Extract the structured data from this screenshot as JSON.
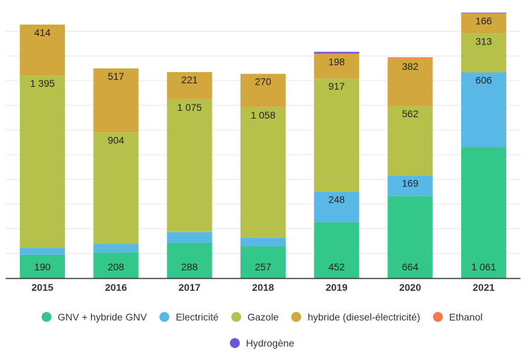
{
  "chart_data": {
    "type": "bar",
    "stacked": true,
    "title": "",
    "xlabel": "",
    "ylabel": "",
    "categories": [
      "2015",
      "2016",
      "2017",
      "2018",
      "2019",
      "2020",
      "2021"
    ],
    "ylim": [
      0,
      2150
    ],
    "y_ticks_shown": false,
    "grid": "horizontal",
    "legend_position": "bottom",
    "series": [
      {
        "name": "GNV + hybride GNV",
        "color": "#33c88a",
        "values": [
          190,
          208,
          288,
          257,
          452,
          664,
          1061
        ],
        "labels": [
          "190",
          "208",
          "288",
          "257",
          "452",
          "664",
          "1 061"
        ]
      },
      {
        "name": "Electricité",
        "color": "#5ab8e6",
        "values": [
          55,
          70,
          85,
          70,
          248,
          169,
          606
        ],
        "labels": [
          "",
          "",
          "",
          "",
          "248",
          "169",
          "606"
        ]
      },
      {
        "name": "Gazole",
        "color": "#b6c14c",
        "values": [
          1395,
          904,
          1075,
          1058,
          917,
          562,
          313
        ],
        "labels": [
          "1 395",
          "904",
          "1 075",
          "1 058",
          "917",
          "562",
          "313"
        ]
      },
      {
        "name": "hybride (diesel-électricité)",
        "color": "#d1a73e",
        "values": [
          414,
          517,
          221,
          270,
          198,
          382,
          166
        ],
        "labels": [
          "414",
          "517",
          "221",
          "270",
          "198",
          "382",
          "166"
        ]
      },
      {
        "name": "Ethanol",
        "color": "#f47a4a",
        "values": [
          0,
          0,
          0,
          0,
          4,
          7,
          0
        ],
        "labels": [
          "",
          "",
          "",
          "",
          "",
          "",
          ""
        ]
      },
      {
        "name": "Hydrogène",
        "color": "#6a55d6",
        "values": [
          0,
          0,
          0,
          0,
          14,
          3,
          5
        ],
        "labels": [
          "",
          "",
          "",
          "",
          "",
          "",
          ""
        ]
      }
    ]
  }
}
